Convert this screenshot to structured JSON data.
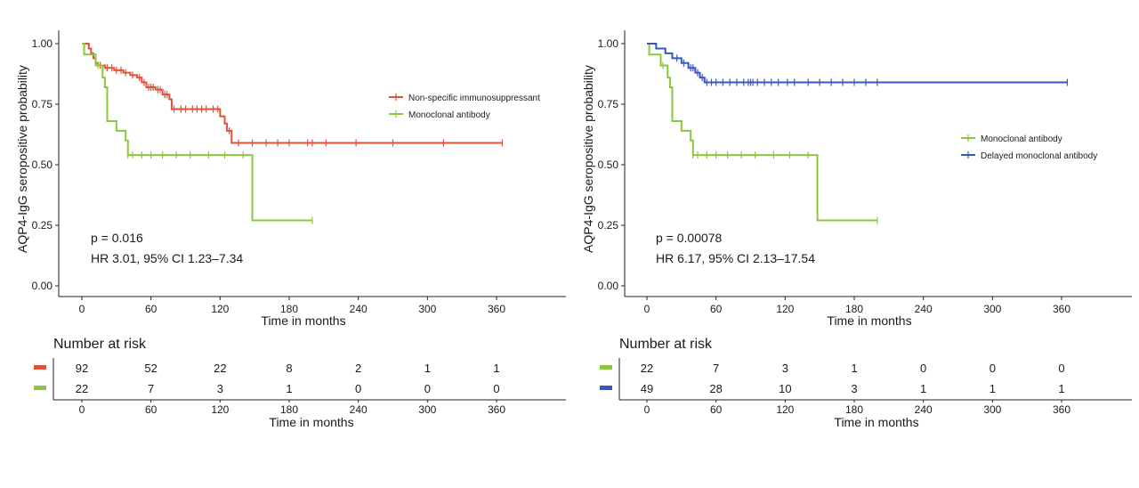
{
  "colors": {
    "red": "#e0513a",
    "green": "#8cc63f",
    "blue": "#3a56c0"
  },
  "chart_data": [
    {
      "type": "line",
      "subtype": "kaplan-meier",
      "xlabel": "Time in months",
      "ylabel": "AQP4-IgG seropositive probability",
      "xlim": [
        0,
        360
      ],
      "ylim": [
        0,
        1
      ],
      "xticks": [
        "0",
        "60",
        "120",
        "180",
        "240",
        "300",
        "360"
      ],
      "yticks": [
        "0.00",
        "0.25",
        "0.50",
        "0.75",
        "1.00"
      ],
      "legend_position": "right",
      "annotations": [
        "p = 0.016",
        "HR 3.01, 95% CI 1.23–7.34"
      ],
      "series": [
        {
          "name": "Non-specific immunosuppressant",
          "color": "#e0513a",
          "steps": [
            [
              0,
              1
            ],
            [
              6,
              0.98
            ],
            [
              8,
              0.96
            ],
            [
              10,
              0.94
            ],
            [
              12,
              0.92
            ],
            [
              14,
              0.91
            ],
            [
              20,
              0.9
            ],
            [
              28,
              0.89
            ],
            [
              36,
              0.88
            ],
            [
              42,
              0.87
            ],
            [
              48,
              0.86
            ],
            [
              52,
              0.84
            ],
            [
              56,
              0.82
            ],
            [
              64,
              0.81
            ],
            [
              70,
              0.79
            ],
            [
              76,
              0.77
            ],
            [
              78,
              0.73
            ],
            [
              116,
              0.73
            ],
            [
              120,
              0.7
            ],
            [
              124,
              0.67
            ],
            [
              126,
              0.64
            ],
            [
              130,
              0.59
            ],
            [
              365,
              0.59
            ]
          ],
          "censor_x": [
            16,
            22,
            26,
            30,
            34,
            38,
            44,
            50,
            54,
            58,
            60,
            62,
            66,
            68,
            72,
            74,
            80,
            86,
            90,
            96,
            100,
            104,
            108,
            114,
            118,
            128,
            136,
            148,
            160,
            170,
            180,
            196,
            200,
            212,
            238,
            270,
            314,
            365
          ]
        },
        {
          "name": "Monoclonal antibody",
          "color": "#8cc63f",
          "steps": [
            [
              0,
              1
            ],
            [
              2,
              0.955
            ],
            [
              10,
              0.955
            ],
            [
              12,
              0.91
            ],
            [
              18,
              0.86
            ],
            [
              20,
              0.82
            ],
            [
              22,
              0.68
            ],
            [
              28,
              0.68
            ],
            [
              30,
              0.64
            ],
            [
              36,
              0.64
            ],
            [
              38,
              0.6
            ],
            [
              40,
              0.54
            ],
            [
              146,
              0.54
            ],
            [
              148,
              0.27
            ],
            [
              200,
              0.27
            ]
          ],
          "censor_x": [
            14,
            40,
            44,
            52,
            60,
            70,
            82,
            94,
            110,
            124,
            140,
            200
          ]
        }
      ],
      "risk_table": {
        "title": "Number at risk",
        "xlabel": "Time in months",
        "times": [
          "0",
          "60",
          "120",
          "180",
          "240",
          "300",
          "360"
        ],
        "rows": [
          {
            "color": "#e0513a",
            "counts": [
              "92",
              "52",
              "22",
              "8",
              "2",
              "1",
              "1"
            ]
          },
          {
            "color": "#8cc63f",
            "counts": [
              "22",
              "7",
              "3",
              "1",
              "0",
              "0",
              "0"
            ]
          }
        ]
      }
    },
    {
      "type": "line",
      "subtype": "kaplan-meier",
      "xlabel": "Time in months",
      "ylabel": "AQP4-IgG seropositive probability",
      "xlim": [
        0,
        360
      ],
      "ylim": [
        0,
        1
      ],
      "xticks": [
        "0",
        "60",
        "120",
        "180",
        "240",
        "300",
        "360"
      ],
      "yticks": [
        "0.00",
        "0.25",
        "0.50",
        "0.75",
        "1.00"
      ],
      "legend_position": "right",
      "annotations": [
        "p = 0.00078",
        "HR 6.17, 95% CI 2.13–17.54"
      ],
      "series": [
        {
          "name": "Monoclonal antibody",
          "color": "#8cc63f",
          "steps": [
            [
              0,
              1
            ],
            [
              2,
              0.955
            ],
            [
              10,
              0.955
            ],
            [
              12,
              0.91
            ],
            [
              18,
              0.86
            ],
            [
              20,
              0.82
            ],
            [
              22,
              0.68
            ],
            [
              28,
              0.68
            ],
            [
              30,
              0.64
            ],
            [
              36,
              0.64
            ],
            [
              38,
              0.6
            ],
            [
              40,
              0.54
            ],
            [
              146,
              0.54
            ],
            [
              148,
              0.27
            ],
            [
              200,
              0.27
            ]
          ],
          "censor_x": [
            14,
            40,
            44,
            52,
            60,
            70,
            82,
            94,
            110,
            124,
            140,
            200
          ]
        },
        {
          "name": "Delayed monoclonal antibody",
          "color": "#3a56c0",
          "steps": [
            [
              0,
              1
            ],
            [
              8,
              0.98
            ],
            [
              16,
              0.96
            ],
            [
              22,
              0.94
            ],
            [
              30,
              0.92
            ],
            [
              36,
              0.9
            ],
            [
              42,
              0.88
            ],
            [
              46,
              0.86
            ],
            [
              50,
              0.84
            ],
            [
              365,
              0.84
            ]
          ],
          "censor_x": [
            26,
            32,
            38,
            40,
            44,
            48,
            52,
            56,
            60,
            66,
            72,
            78,
            84,
            88,
            90,
            92,
            96,
            102,
            108,
            114,
            122,
            128,
            140,
            150,
            160,
            170,
            180,
            190,
            200,
            365
          ]
        }
      ],
      "risk_table": {
        "title": "Number at risk",
        "xlabel": "Time in months",
        "times": [
          "0",
          "60",
          "120",
          "180",
          "240",
          "300",
          "360"
        ],
        "rows": [
          {
            "color": "#8cc63f",
            "counts": [
              "22",
              "7",
              "3",
              "1",
              "0",
              "0",
              "0"
            ]
          },
          {
            "color": "#3a56c0",
            "counts": [
              "49",
              "28",
              "10",
              "3",
              "1",
              "1",
              "1"
            ]
          }
        ]
      }
    }
  ]
}
